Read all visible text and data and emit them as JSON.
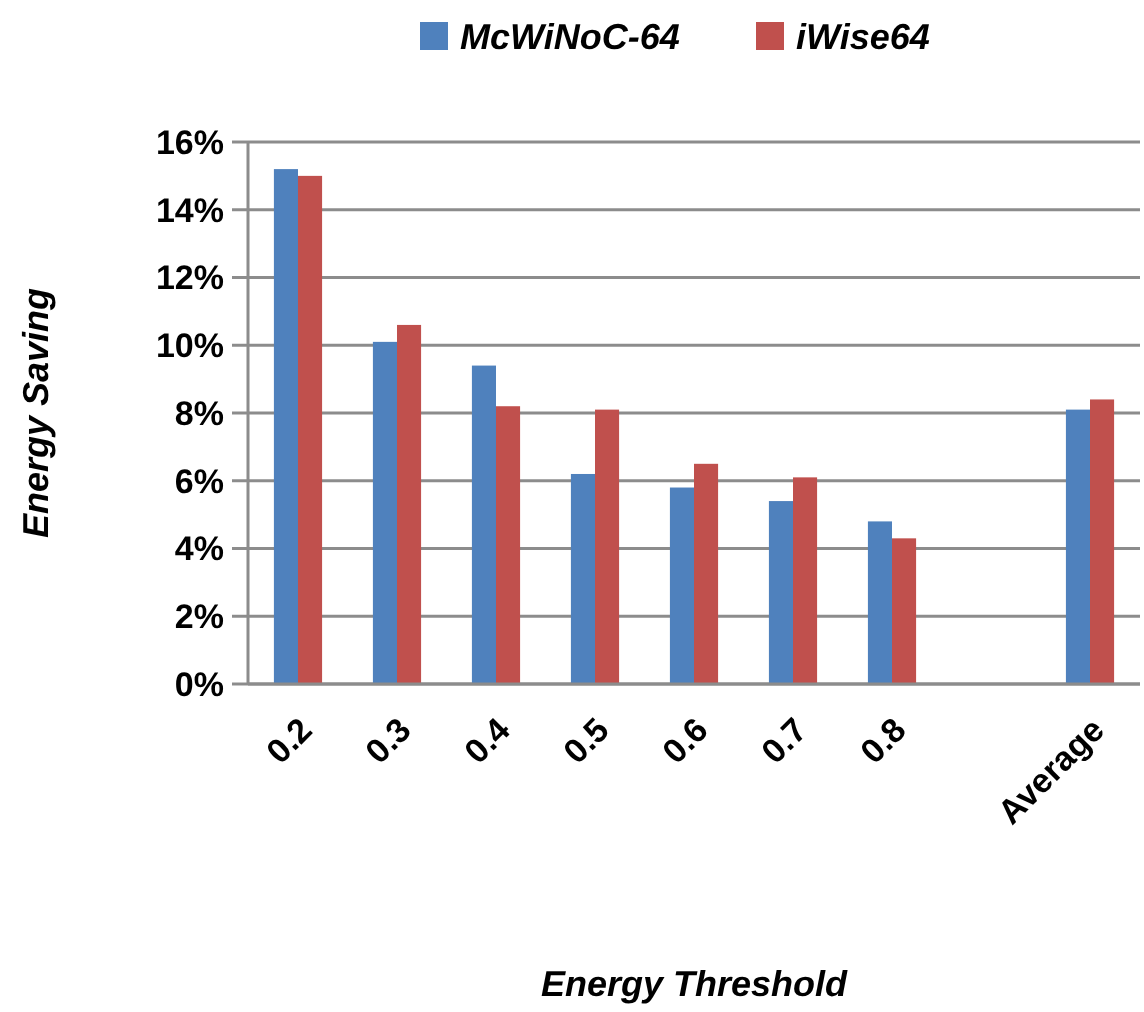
{
  "chart_data": {
    "type": "bar",
    "xlabel": "Energy Threshold",
    "ylabel": "Energy Saving",
    "categories": [
      "0.2",
      "0.3",
      "0.4",
      "0.5",
      "0.6",
      "0.7",
      "0.8",
      null,
      "Average"
    ],
    "series": [
      {
        "name": "McWiNoC-64",
        "color": "#4f81bd",
        "values": [
          15.2,
          10.1,
          9.4,
          6.2,
          5.8,
          5.4,
          4.8,
          null,
          8.1
        ]
      },
      {
        "name": "iWise64",
        "color": "#c0504d",
        "values": [
          15.0,
          10.6,
          8.2,
          8.1,
          6.5,
          6.1,
          4.3,
          null,
          8.4
        ]
      }
    ],
    "ylim": [
      0,
      16
    ],
    "yticks": [
      {
        "value": 0,
        "label": "0%"
      },
      {
        "value": 2,
        "label": "2%"
      },
      {
        "value": 4,
        "label": "4%"
      },
      {
        "value": 6,
        "label": "6%"
      },
      {
        "value": 8,
        "label": "8%"
      },
      {
        "value": 10,
        "label": "10%"
      },
      {
        "value": 12,
        "label": "12%"
      },
      {
        "value": 14,
        "label": "14%"
      },
      {
        "value": 16,
        "label": "16%"
      }
    ],
    "grid": "y",
    "legend": "top"
  }
}
